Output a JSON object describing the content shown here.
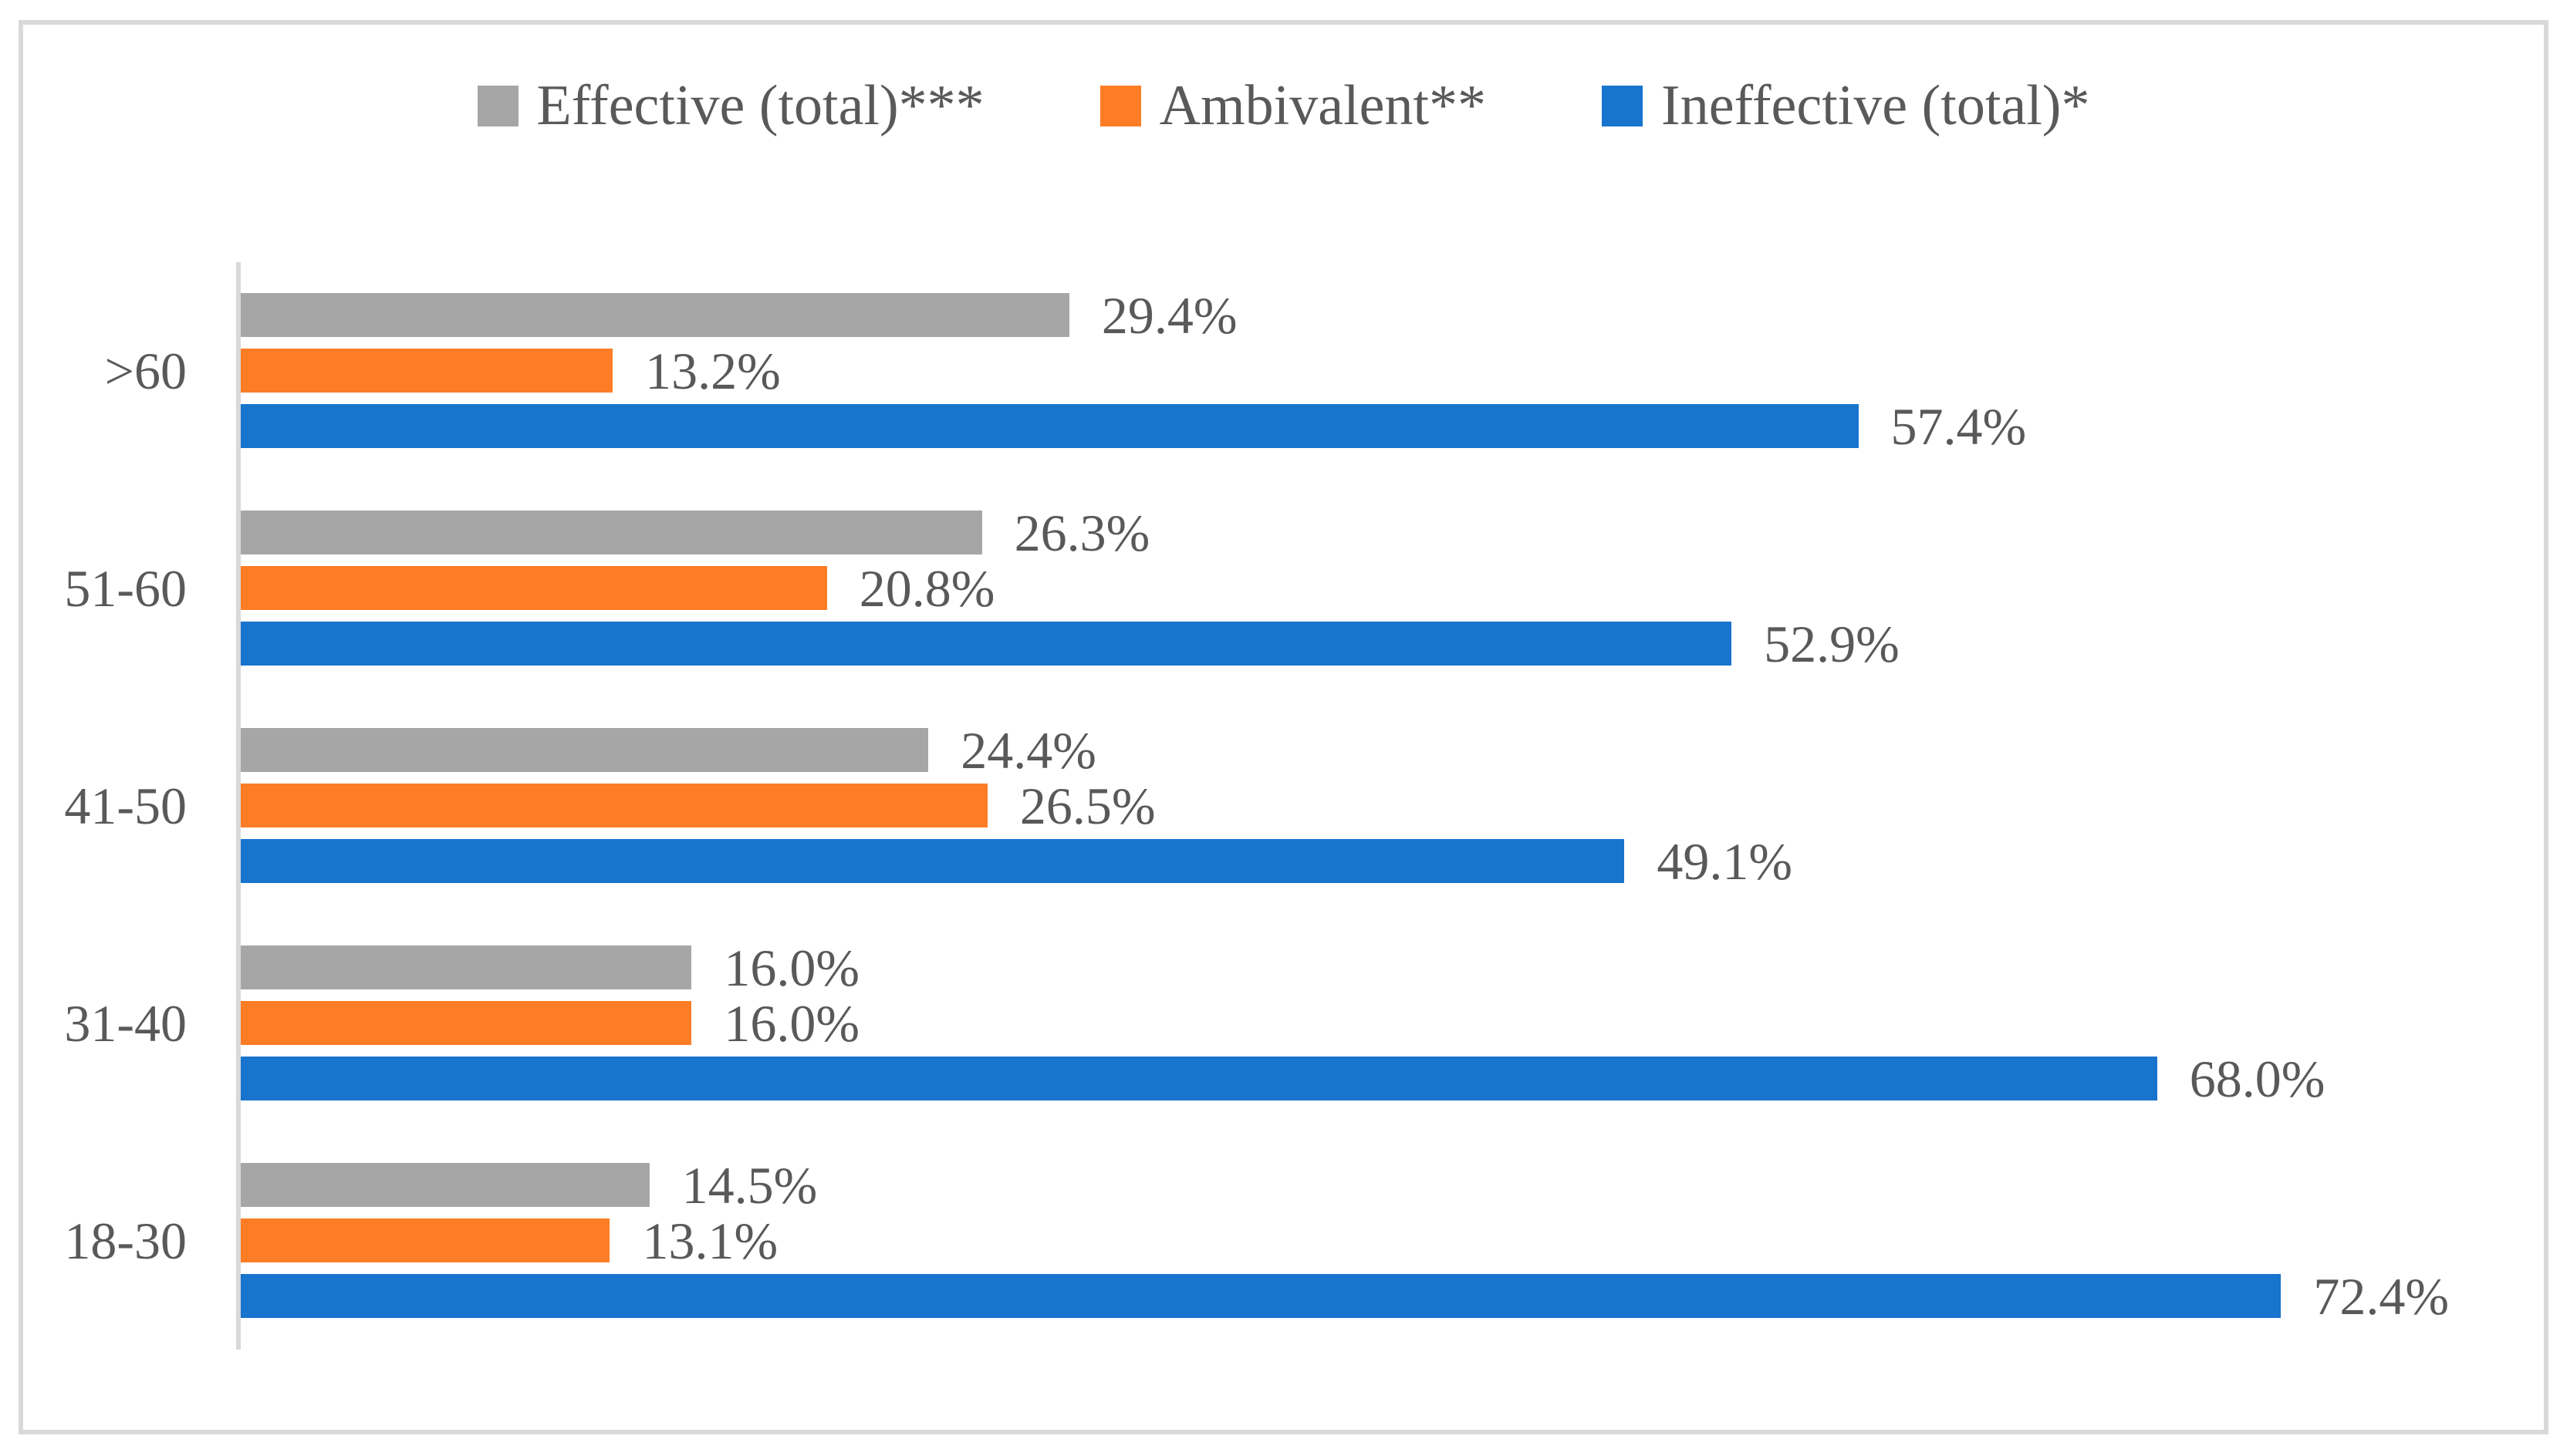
{
  "figure": {
    "background": "#ffffff",
    "frame_color": "#d9d9d9",
    "axis_color": "#d9d9d9",
    "text_color": "#595959"
  },
  "legend": {
    "position": "top",
    "items": [
      {
        "label": "Effective (total)***",
        "color": "#a6a6a6"
      },
      {
        "label": "Ambivalent**",
        "color": "#fc7d26"
      },
      {
        "label": "Ineffective (total)*",
        "color": "#1874cd"
      }
    ]
  },
  "chart_data": {
    "type": "bar",
    "orientation": "horizontal",
    "title": "",
    "xlabel": "",
    "ylabel": "",
    "xlim": [
      0,
      80
    ],
    "grid": false,
    "legend_position": "top",
    "categories": [
      ">60",
      "51-60",
      "41-50",
      "31-40",
      "18-30"
    ],
    "series": [
      {
        "name": "Effective (total)***",
        "color": "#a6a6a6",
        "values": [
          29.4,
          26.3,
          24.4,
          16.0,
          14.5
        ]
      },
      {
        "name": "Ambivalent**",
        "color": "#fc7d26",
        "values": [
          13.2,
          20.8,
          26.5,
          16.0,
          13.1
        ]
      },
      {
        "name": "Ineffective (total)*",
        "color": "#1874cd",
        "values": [
          57.4,
          52.9,
          49.1,
          68.0,
          72.4
        ]
      }
    ],
    "data_labels": [
      [
        "29.4%",
        "13.2%",
        "57.4%"
      ],
      [
        "26.3%",
        "20.8%",
        "52.9%"
      ],
      [
        "24.4%",
        "26.5%",
        "49.1%"
      ],
      [
        "16.0%",
        "16.0%",
        "68.0%"
      ],
      [
        "14.5%",
        "13.1%",
        "72.4%"
      ]
    ]
  }
}
